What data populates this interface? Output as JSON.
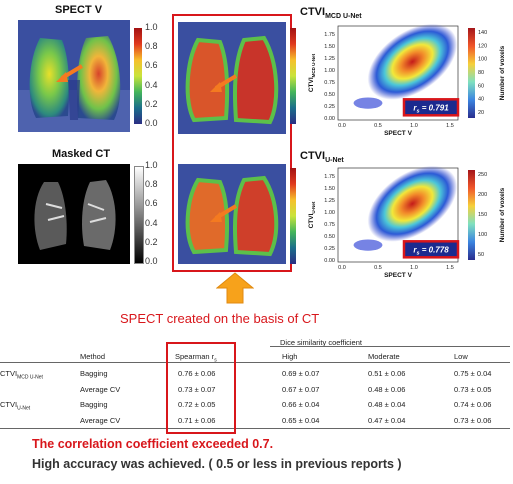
{
  "panels": {
    "spect_title": "SPECT V",
    "masked_title": "Masked CT",
    "ctvi_mcd_title": "CTVI",
    "ctvi_mcd_sub": "MCD U-Net",
    "ctvi_unet_title": "CTVI",
    "ctvi_unet_sub": "U-Net"
  },
  "colorbar_ticks": [
    "1.0",
    "0.8",
    "0.6",
    "0.4",
    "0.2",
    "0.0"
  ],
  "scatter_top": {
    "ylabel": "CTVI",
    "ylabel_sub": "MCD U-Net",
    "xlabel": "SPECT V",
    "yticks": [
      "1.75",
      "1.50",
      "1.25",
      "1.00",
      "0.75",
      "0.50",
      "0.25",
      "0.00"
    ],
    "xticks": [
      "0.0",
      "0.5",
      "1.0",
      "1.5"
    ],
    "cb_ticks": [
      "140",
      "120",
      "100",
      "80",
      "60",
      "40",
      "20"
    ],
    "cb_label": "Number of voxels",
    "rs_label": "r",
    "rs_sub": "s",
    "rs_value": " = 0.791"
  },
  "scatter_bottom": {
    "ylabel": "CTVI",
    "ylabel_sub": "U-Net",
    "xlabel": "SPECT V",
    "yticks": [
      "1.75",
      "1.50",
      "1.25",
      "1.00",
      "0.75",
      "0.50",
      "0.25",
      "0.00"
    ],
    "xticks": [
      "0.0",
      "0.5",
      "1.0",
      "1.5"
    ],
    "cb_ticks": [
      "250",
      "200",
      "150",
      "100",
      "50"
    ],
    "cb_label": "Number of voxels",
    "rs_label": "r",
    "rs_sub": "s",
    "rs_value": " = 0.778"
  },
  "caption_middle": "SPECT created on the basis of CT",
  "table": {
    "group_header": "Dice similarity coefficient",
    "col_method": "Method",
    "col_spearman": "Spearman r",
    "col_spearman_sub": "s",
    "col_high": "High",
    "col_moderate": "Moderate",
    "col_low": "Low",
    "rows": [
      {
        "model": "CTVI",
        "model_sub": "MCD U-Net",
        "method": "Bagging",
        "spearman": "0.76 ± 0.06",
        "high": "0.69 ± 0.07",
        "moderate": "0.51 ± 0.06",
        "low": "0.75 ± 0.04"
      },
      {
        "model": "",
        "model_sub": "",
        "method": "Average CV",
        "spearman": "0.73 ± 0.07",
        "high": "0.67 ± 0.07",
        "moderate": "0.48 ± 0.06",
        "low": "0.73 ± 0.05"
      },
      {
        "model": "CTVI",
        "model_sub": "U-Net",
        "method": "Bagging",
        "spearman": "0.72 ± 0.05",
        "high": "0.66 ± 0.04",
        "moderate": "0.48 ± 0.04",
        "low": "0.74 ± 0.06"
      },
      {
        "model": "",
        "model_sub": "",
        "method": "Average CV",
        "spearman": "0.71 ± 0.06",
        "high": "0.65 ± 0.04",
        "moderate": "0.47 ± 0.04",
        "low": "0.73 ± 0.06"
      }
    ]
  },
  "conclusion1": "The correlation coefficient exceeded 0.7.",
  "conclusion2": "High accuracy was achieved. ( 0.5 or less in previous  reports )",
  "colors": {
    "accent_red": "#d8161b",
    "arrow_orange": "#f7a21b",
    "deep_blue": "#1b2a8f"
  }
}
